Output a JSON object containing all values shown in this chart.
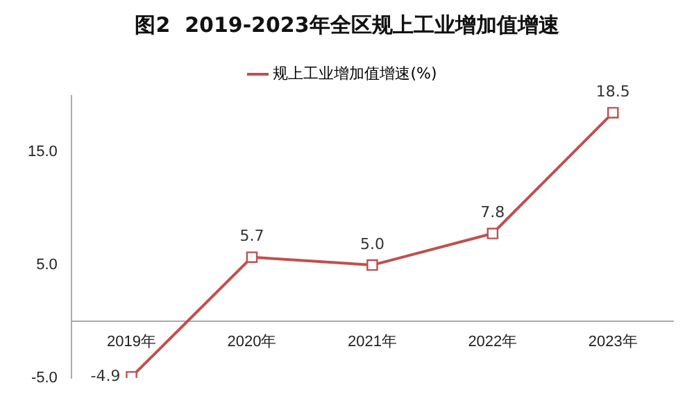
{
  "chart_data": {
    "type": "line",
    "title": "图2  2019-2023年全区规上工业增加值增速",
    "categories": [
      "2019年",
      "2020年",
      "2021年",
      "2022年",
      "2023年"
    ],
    "series": [
      {
        "name": "规上工业增加值增速(%)",
        "color": "#c0504d",
        "values": [
          -4.9,
          5.7,
          5.0,
          7.8,
          18.5
        ],
        "value_labels": [
          "-4.9",
          "5.7",
          "5.0",
          "7.8",
          "18.5"
        ]
      }
    ],
    "ylim": [
      -5,
      20
    ],
    "yticks": [
      {
        "value": -5,
        "label": "-5.0"
      },
      {
        "value": 5,
        "label": "5.0"
      },
      {
        "value": 15,
        "label": "15.0"
      }
    ],
    "legend": "top",
    "marker": "square",
    "grid": false
  }
}
